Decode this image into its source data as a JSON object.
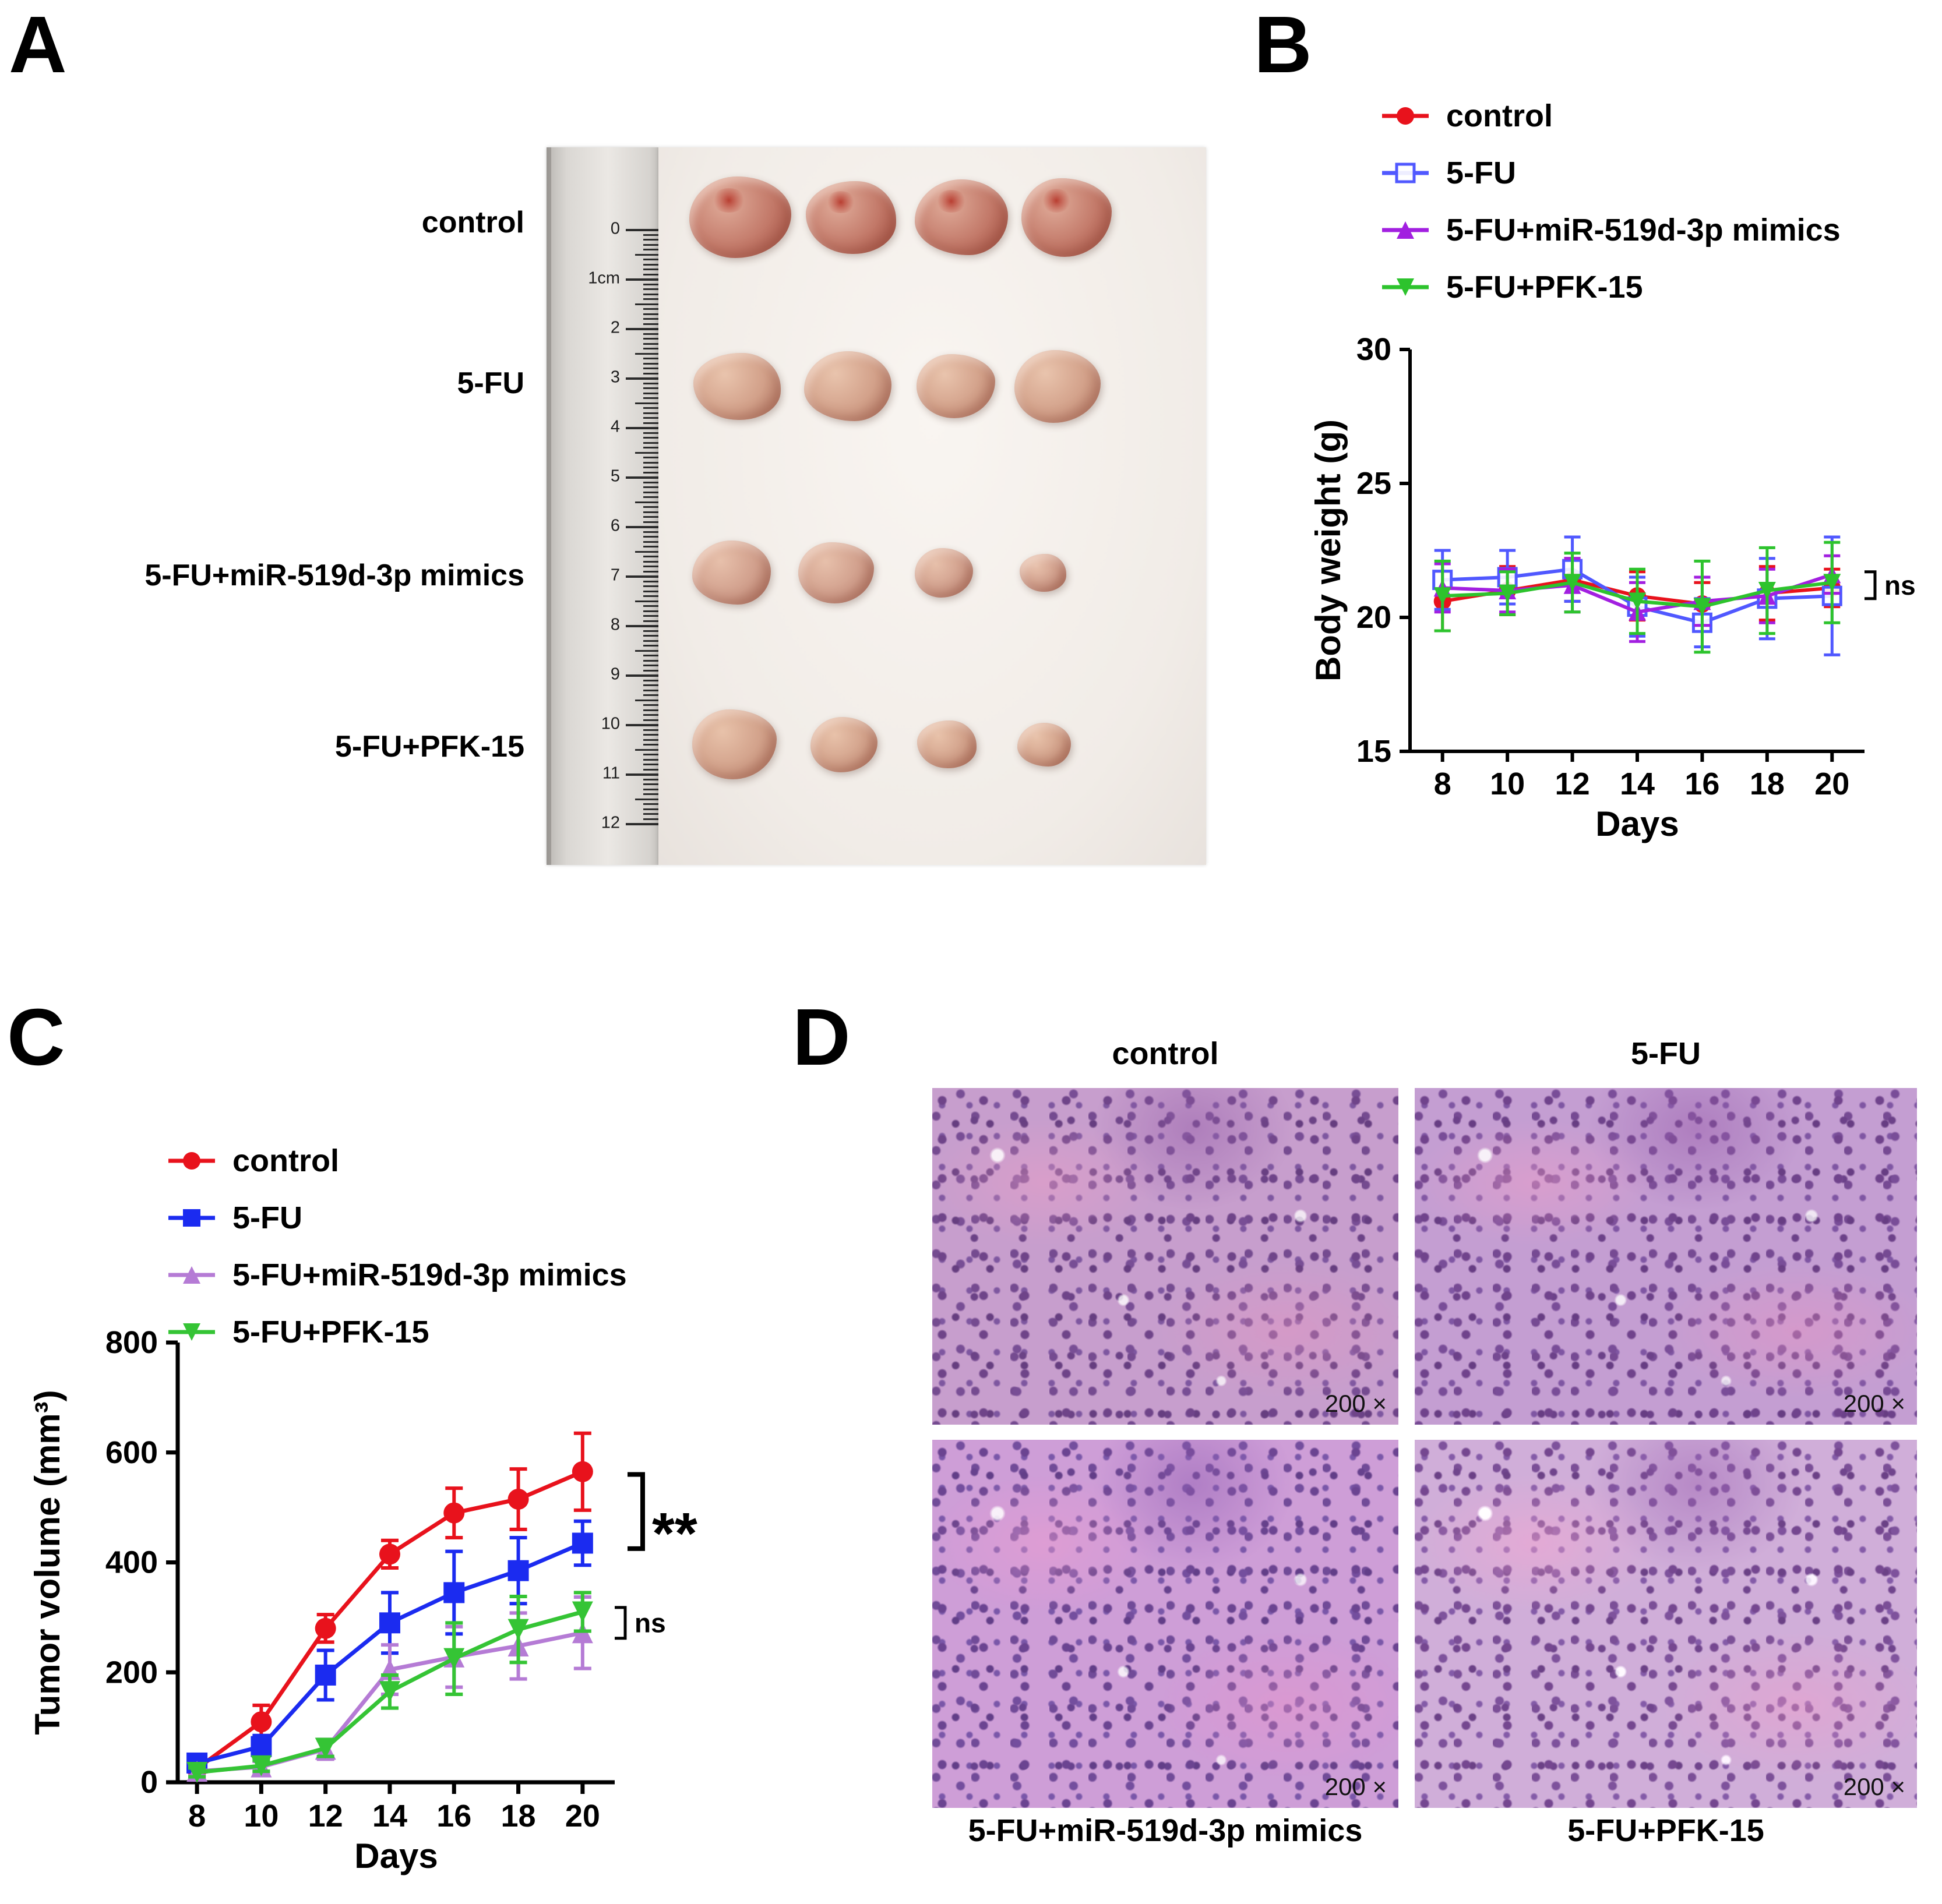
{
  "panels": {
    "a": {
      "letter": "A",
      "row_labels": [
        "control",
        "5-FU",
        "5-FU+miR-519d-3p mimics",
        "5-FU+PFK-15"
      ],
      "ruler_numbers": [
        "0",
        "1cm",
        "2",
        "3",
        "4",
        "5",
        "6",
        "7",
        "8",
        "9",
        "10",
        "11",
        "12"
      ]
    },
    "b": {
      "letter": "B"
    },
    "c": {
      "letter": "C"
    },
    "d": {
      "letter": "D",
      "top_labels": [
        "control",
        "5-FU"
      ],
      "bottom_labels": [
        "5-FU+miR-519d-3p mimics",
        "5-FU+PFK-15"
      ],
      "magnification": "200 ×"
    }
  },
  "chart_data": [
    {
      "id": "body-weight",
      "type": "line",
      "title": "",
      "xlabel": "Days",
      "ylabel": "Body weight (g)",
      "x": [
        8,
        10,
        12,
        14,
        16,
        18,
        20
      ],
      "xlim": [
        7,
        21
      ],
      "ylim": [
        15,
        30
      ],
      "yticks": [
        15,
        20,
        25,
        30
      ],
      "grid": false,
      "legend_position": "above-left",
      "series": [
        {
          "name": "control",
          "color": "#e8121c",
          "marker": "circle",
          "values": [
            20.6,
            21.0,
            21.4,
            20.8,
            20.5,
            20.9,
            21.1
          ],
          "errors": [
            1.1,
            0.9,
            0.8,
            0.9,
            0.8,
            1.0,
            0.7
          ]
        },
        {
          "name": "5-FU",
          "color": "#5058ff",
          "marker": "square-open",
          "values": [
            21.4,
            21.5,
            21.8,
            20.4,
            19.8,
            20.7,
            20.8
          ],
          "errors": [
            1.1,
            1.0,
            1.2,
            1.1,
            0.9,
            1.5,
            2.2
          ]
        },
        {
          "name": "5-FU+miR-519d-3p mimics",
          "color": "#a21fe0",
          "marker": "triangle-up",
          "values": [
            21.1,
            21.0,
            21.2,
            20.2,
            20.6,
            20.8,
            21.6
          ],
          "errors": [
            0.9,
            0.8,
            1.0,
            1.1,
            0.9,
            1.0,
            0.7
          ]
        },
        {
          "name": "5-FU+PFK-15",
          "color": "#2dc32d",
          "marker": "triangle-down",
          "values": [
            20.8,
            20.9,
            21.3,
            20.6,
            20.4,
            21.0,
            21.3
          ],
          "errors": [
            1.3,
            0.8,
            1.1,
            1.2,
            1.7,
            1.6,
            1.5
          ]
        }
      ],
      "annotations": [
        {
          "label": "ns",
          "from": 20.7,
          "to": 21.7,
          "style": "small"
        }
      ]
    },
    {
      "id": "tumor-volume",
      "type": "line",
      "title": "",
      "xlabel": "Days",
      "ylabel": "Tumor volume (mm³)",
      "x": [
        8,
        10,
        12,
        14,
        16,
        18,
        20
      ],
      "xlim": [
        7.4,
        21
      ],
      "ylim": [
        0,
        800
      ],
      "yticks": [
        0,
        200,
        400,
        600,
        800
      ],
      "grid": false,
      "legend_position": "above-left",
      "series": [
        {
          "name": "control",
          "color": "#e8121c",
          "marker": "circle",
          "values": [
            25,
            110,
            280,
            415,
            490,
            515,
            565
          ],
          "errors": [
            15,
            30,
            25,
            25,
            45,
            55,
            70
          ]
        },
        {
          "name": "5-FU",
          "color": "#1b2bf0",
          "marker": "square",
          "values": [
            35,
            65,
            195,
            290,
            345,
            385,
            435
          ],
          "errors": [
            10,
            20,
            45,
            55,
            75,
            60,
            40
          ]
        },
        {
          "name": "5-FU+miR-519d-3p mimics",
          "color": "#b57bd5",
          "marker": "triangle-up",
          "values": [
            20,
            28,
            60,
            205,
            228,
            248,
            272
          ],
          "errors": [
            8,
            10,
            18,
            45,
            55,
            60,
            65
          ]
        },
        {
          "name": "5-FU+PFK-15",
          "color": "#35c435",
          "marker": "triangle-down",
          "values": [
            18,
            30,
            62,
            165,
            225,
            278,
            310
          ],
          "errors": [
            8,
            10,
            15,
            30,
            65,
            60,
            35
          ]
        }
      ],
      "annotations": [
        {
          "label": "**",
          "from": 425,
          "to": 560,
          "style": "large"
        },
        {
          "label": "ns",
          "from": 262,
          "to": 318,
          "style": "small"
        }
      ]
    }
  ]
}
